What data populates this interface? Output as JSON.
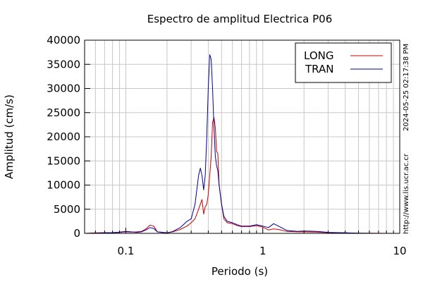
{
  "chart_data": {
    "type": "line",
    "title": "Espectro de amplitud Electrica P06",
    "xlabel": "Periodo (s)",
    "ylabel": "Amplitud (cm/s)",
    "xscale": "log",
    "xlim": [
      0.05,
      10
    ],
    "ylim": [
      0,
      40000
    ],
    "x_ticks": [
      0.1,
      1,
      10
    ],
    "x_tick_labels": [
      "0.1",
      "1",
      "10"
    ],
    "y_ticks": [
      0,
      5000,
      10000,
      15000,
      20000,
      25000,
      30000,
      35000,
      40000
    ],
    "y_tick_labels": [
      "0",
      "5000",
      "10000",
      "15000",
      "20000",
      "25000",
      "30000",
      "35000",
      "40000"
    ],
    "grid": true,
    "legend_position": "top-right",
    "series": [
      {
        "name": "LONG",
        "color": "#cc0000",
        "x": [
          0.05,
          0.06,
          0.07,
          0.08,
          0.09,
          0.1,
          0.11,
          0.12,
          0.13,
          0.14,
          0.15,
          0.16,
          0.17,
          0.18,
          0.2,
          0.22,
          0.25,
          0.28,
          0.3,
          0.32,
          0.34,
          0.36,
          0.37,
          0.38,
          0.39,
          0.4,
          0.41,
          0.42,
          0.43,
          0.44,
          0.45,
          0.46,
          0.47,
          0.48,
          0.5,
          0.52,
          0.55,
          0.6,
          0.65,
          0.7,
          0.8,
          0.9,
          1.0,
          1.1,
          1.2,
          1.3,
          1.5,
          1.8,
          2.0,
          2.5,
          3.0,
          4.0,
          5.0,
          7.0,
          10.0
        ],
        "y": [
          0,
          100,
          150,
          100,
          200,
          300,
          250,
          300,
          400,
          900,
          1700,
          1500,
          300,
          200,
          100,
          300,
          800,
          1500,
          2200,
          3000,
          5000,
          7000,
          4000,
          5500,
          6000,
          8000,
          12000,
          16000,
          23000,
          24000,
          22000,
          17000,
          16500,
          10000,
          6000,
          3000,
          2200,
          2000,
          1600,
          1400,
          1400,
          1600,
          1300,
          700,
          900,
          800,
          400,
          300,
          300,
          250,
          150,
          100,
          50,
          20,
          0
        ]
      },
      {
        "name": "TRAN",
        "color": "#000099",
        "x": [
          0.05,
          0.06,
          0.07,
          0.08,
          0.09,
          0.1,
          0.11,
          0.12,
          0.13,
          0.14,
          0.15,
          0.16,
          0.17,
          0.18,
          0.2,
          0.22,
          0.25,
          0.28,
          0.3,
          0.32,
          0.34,
          0.35,
          0.36,
          0.37,
          0.38,
          0.39,
          0.4,
          0.41,
          0.42,
          0.43,
          0.44,
          0.45,
          0.46,
          0.47,
          0.48,
          0.5,
          0.52,
          0.55,
          0.6,
          0.65,
          0.7,
          0.8,
          0.9,
          1.0,
          1.1,
          1.2,
          1.3,
          1.5,
          1.8,
          2.0,
          2.5,
          3.0,
          4.0,
          5.0,
          7.0,
          10.0
        ],
        "y": [
          0,
          50,
          100,
          150,
          250,
          400,
          300,
          200,
          300,
          700,
          1200,
          1000,
          300,
          250,
          100,
          400,
          1200,
          2500,
          3000,
          6000,
          12000,
          13500,
          12000,
          9000,
          12000,
          20000,
          30000,
          37000,
          36000,
          30000,
          22000,
          16000,
          14000,
          13000,
          10000,
          6000,
          3500,
          2500,
          2200,
          1800,
          1500,
          1500,
          1800,
          1500,
          1200,
          2000,
          1500,
          600,
          400,
          500,
          400,
          200,
          100,
          50,
          0,
          0
        ]
      }
    ]
  },
  "side_labels": {
    "timestamp": "2024-05-25 02:17:38 PM",
    "url": "http://www.lis.ucr.ac.cr"
  }
}
